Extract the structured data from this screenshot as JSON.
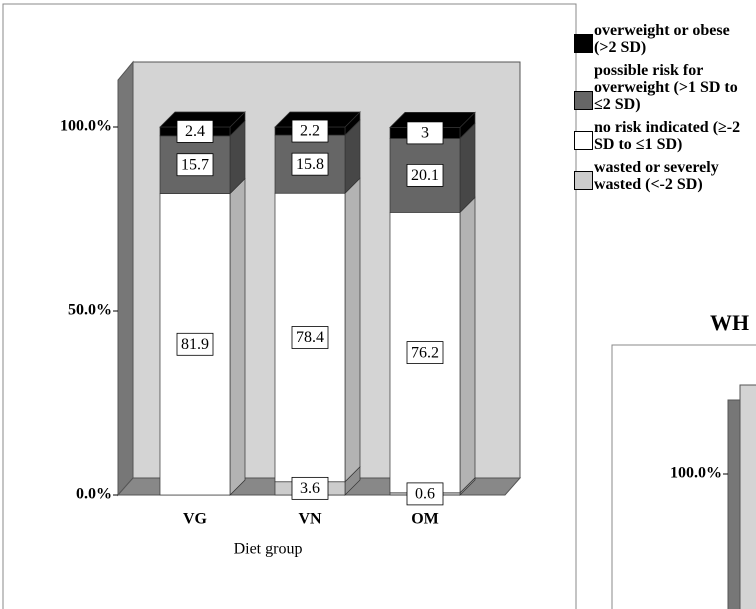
{
  "chart_data": [
    {
      "type": "bar3d_stacked",
      "categories": [
        "VG",
        "VN",
        "OM"
      ],
      "xlabel": "Diet group",
      "ylim": [
        0,
        100
      ],
      "yticks": [
        {
          "value": 0,
          "label": "0.0%"
        },
        {
          "value": 50,
          "label": "50.0%"
        },
        {
          "value": 100,
          "label": "100.0%"
        }
      ],
      "series": [
        {
          "name": "wasted or severely wasted (<-2 SD)",
          "color": "#cccccc",
          "values": [
            0,
            3.6,
            0.6
          ]
        },
        {
          "name": "no risk indicated (≥-2 SD to ≤1 SD)",
          "color": "#ffffff",
          "values": [
            81.9,
            78.4,
            76.2
          ]
        },
        {
          "name": "possible risk for overweight (>1 SD to ≤2 SD)",
          "color": "#666666",
          "values": [
            15.7,
            15.8,
            20.1
          ]
        },
        {
          "name": "overweight or obese (>2 SD)",
          "color": "#000000",
          "values": [
            2.4,
            2.2,
            3.0
          ]
        }
      ]
    },
    {
      "type": "bar3d_stacked",
      "title": "WH",
      "ylim": [
        0,
        100
      ],
      "yticks": [
        {
          "value": 100,
          "label": "100.0%"
        }
      ]
    }
  ]
}
